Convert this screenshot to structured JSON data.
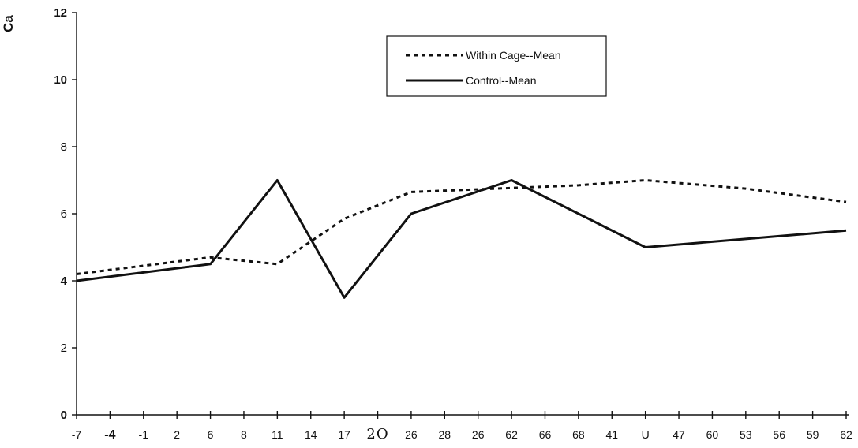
{
  "chart_data": {
    "type": "line",
    "ylabel_visible": "Ca",
    "ylim": [
      0,
      12
    ],
    "yticks": [
      "0",
      "2",
      "4",
      "6",
      "8",
      "10",
      "12"
    ],
    "categories": [
      "-7",
      "-4",
      "-1",
      "2",
      "6",
      "8",
      "11",
      "14",
      "17",
      "2O",
      "26",
      "28",
      "26",
      "62",
      "66",
      "68",
      "41",
      "U",
      "47",
      "60",
      "53",
      "56",
      "59",
      "62"
    ],
    "series": [
      {
        "name": "Within Cage--Mean",
        "style": "dotted",
        "color": "#111111",
        "points": [
          [
            0,
            4.2
          ],
          [
            4,
            4.7
          ],
          [
            6,
            4.5
          ],
          [
            8,
            5.85
          ],
          [
            10,
            6.65
          ],
          [
            15,
            6.85
          ],
          [
            17,
            7.0
          ],
          [
            20,
            6.75
          ],
          [
            23,
            6.35
          ]
        ]
      },
      {
        "name": "Control--Mean",
        "style": "solid",
        "color": "#111111",
        "points": [
          [
            0,
            4.0
          ],
          [
            4,
            4.5
          ],
          [
            6,
            7.0
          ],
          [
            8,
            3.5
          ],
          [
            10,
            6.0
          ],
          [
            13,
            7.0
          ],
          [
            17,
            5.0
          ],
          [
            23,
            5.5
          ]
        ]
      }
    ],
    "legend_position": "top-center",
    "grid": false
  }
}
